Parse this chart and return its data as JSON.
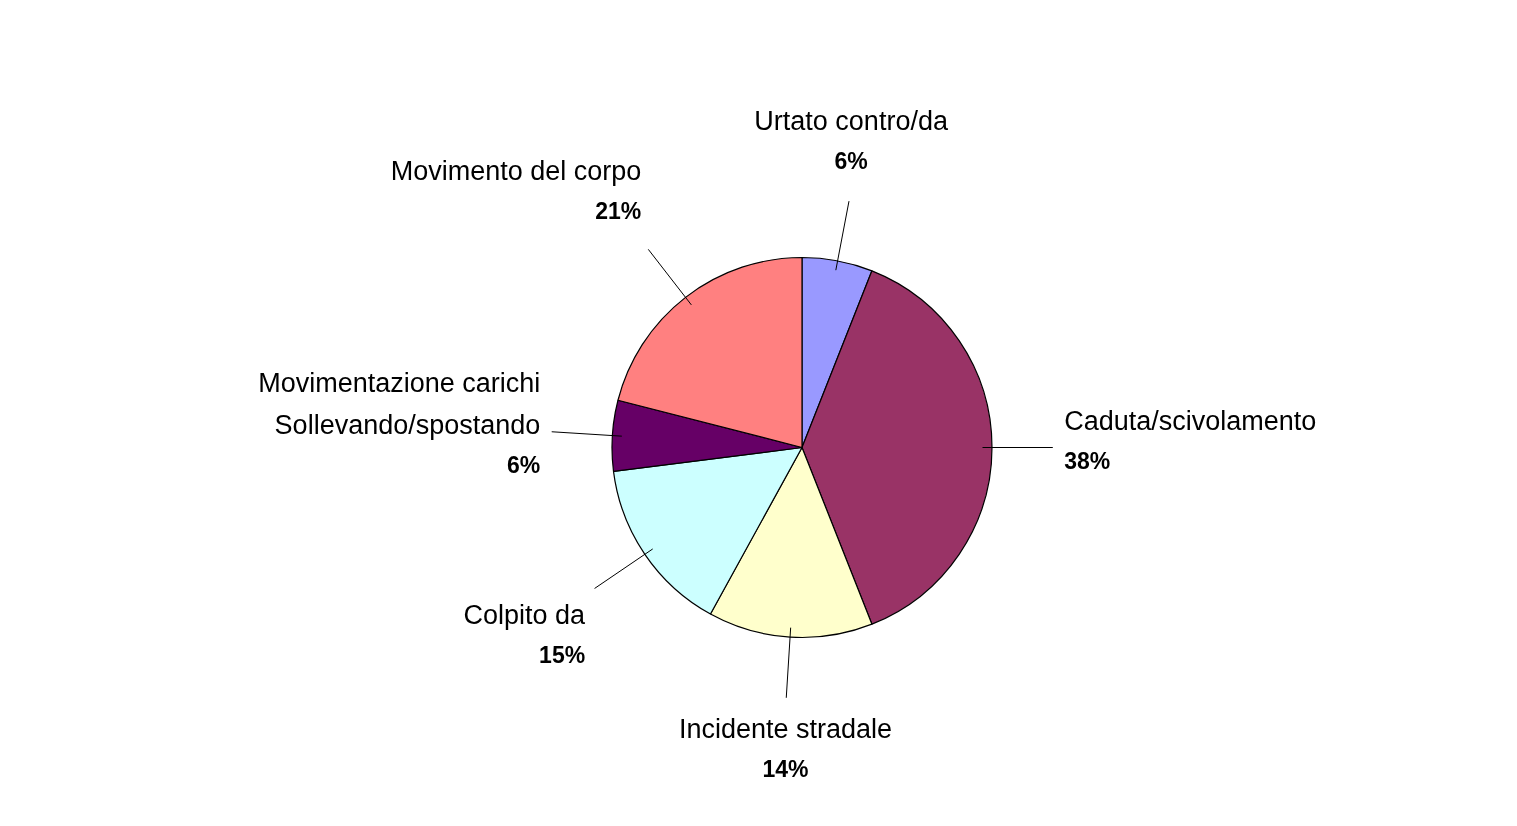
{
  "chart_data": {
    "type": "pie",
    "categories": [
      "Urtato contro/da",
      "Caduta/scivolamento",
      "Incidente stradale",
      "Colpito da",
      "Movimentazione carichi\nSollevando/spostando",
      "Movimento del corpo"
    ],
    "values": [
      6,
      38,
      14,
      15,
      6,
      21
    ],
    "colors": [
      "#9999ff",
      "#993366",
      "#ffffcc",
      "#ccffff",
      "#660066",
      "#ff8080"
    ],
    "value_labels": [
      "6%",
      "38%",
      "14%",
      "15%",
      "6%",
      "21%"
    ]
  }
}
